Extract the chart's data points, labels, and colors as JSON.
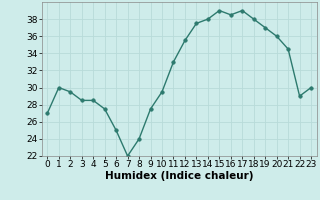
{
  "x": [
    0,
    1,
    2,
    3,
    4,
    5,
    6,
    7,
    8,
    9,
    10,
    11,
    12,
    13,
    14,
    15,
    16,
    17,
    18,
    19,
    20,
    21,
    22,
    23
  ],
  "y": [
    27,
    30,
    29.5,
    28.5,
    28.5,
    27.5,
    25,
    22,
    24,
    27.5,
    29.5,
    33,
    35.5,
    37.5,
    38,
    39,
    38.5,
    39,
    38,
    37,
    36,
    34.5,
    29,
    30
  ],
  "line_color": "#2d7a6e",
  "marker_color": "#2d7a6e",
  "bg_color": "#ceecea",
  "grid_color": "#b8dbd9",
  "xlabel": "Humidex (Indice chaleur)",
  "ylim": [
    22,
    40
  ],
  "yticks": [
    22,
    24,
    26,
    28,
    30,
    32,
    34,
    36,
    38
  ],
  "xticks": [
    0,
    1,
    2,
    3,
    4,
    5,
    6,
    7,
    8,
    9,
    10,
    11,
    12,
    13,
    14,
    15,
    16,
    17,
    18,
    19,
    20,
    21,
    22,
    23
  ],
  "tick_fontsize": 6.5,
  "xlabel_fontsize": 7.5,
  "linewidth": 1.0,
  "markersize": 2.5
}
